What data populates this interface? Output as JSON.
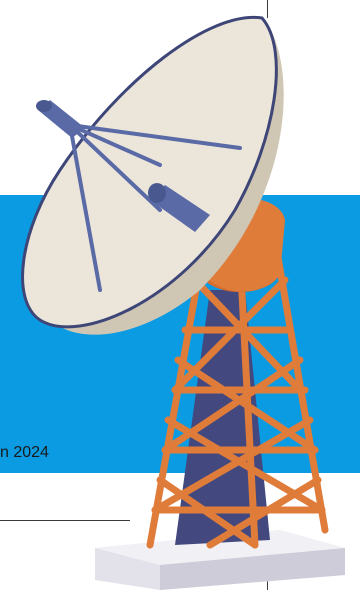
{
  "banner": {
    "caption": "n 2024",
    "color": "#0b9be3"
  },
  "illustration": {
    "subject": "satellite-dish-tower",
    "colors": {
      "dish": "#ece6da",
      "dish_shadow": "#d7cfbf",
      "rim": "#3e4678",
      "struts": "#5a6aa6",
      "tower": "#e07c3a",
      "tower_core": "#43497e",
      "base": "#e3e1ea"
    }
  }
}
